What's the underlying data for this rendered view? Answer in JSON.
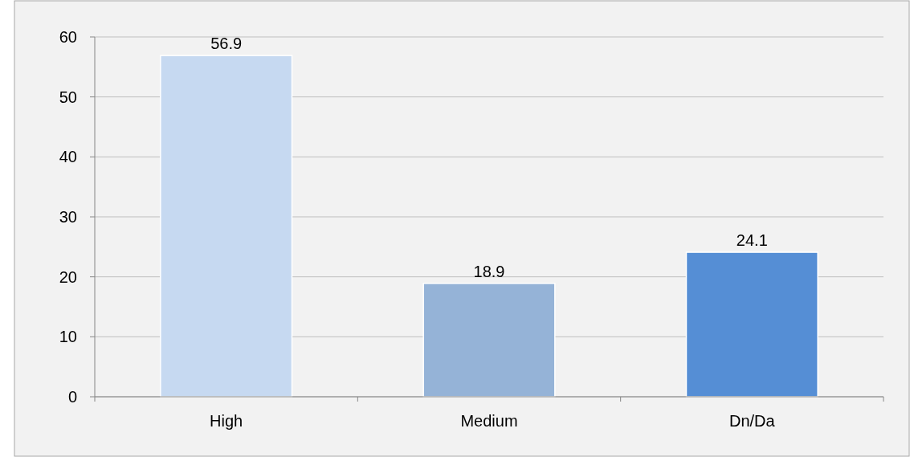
{
  "chart_data": {
    "type": "bar",
    "categories": [
      "High",
      "Medium",
      "Dn/Da"
    ],
    "values": [
      56.9,
      18.9,
      24.1
    ],
    "colors": [
      "#c6d9f1",
      "#95b3d7",
      "#558ed5"
    ],
    "ylim": [
      0,
      60
    ],
    "yticks": [
      0,
      10,
      20,
      30,
      40,
      50,
      60
    ],
    "grid": "y",
    "data_labels": true
  }
}
